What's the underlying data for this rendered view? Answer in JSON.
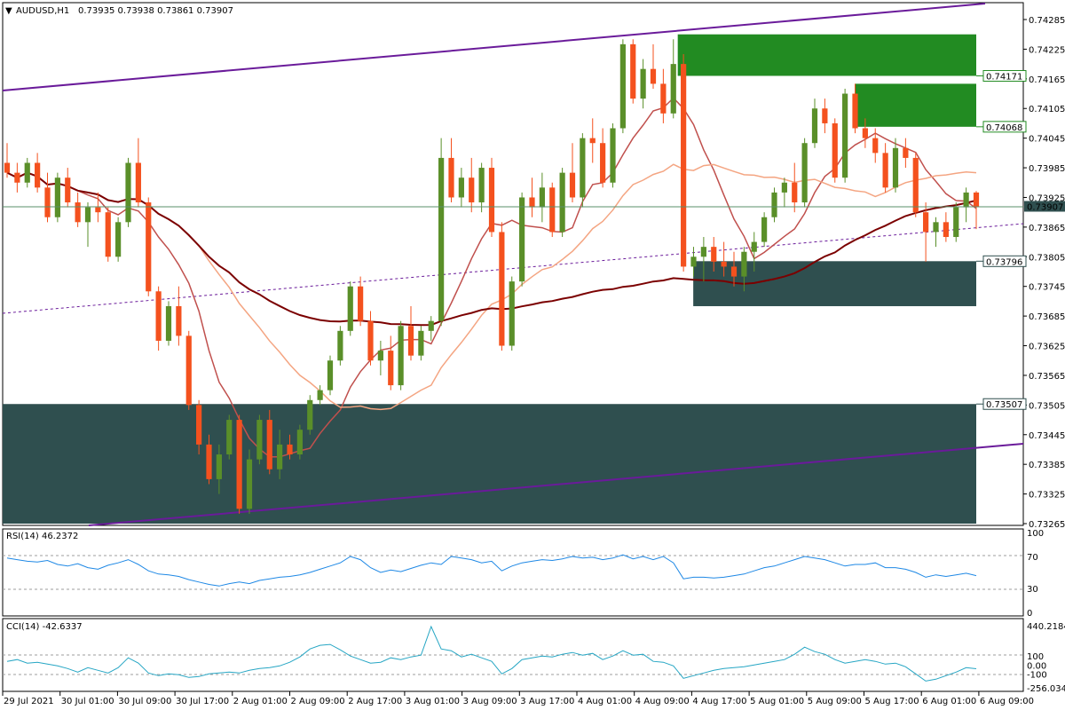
{
  "main": {
    "symbol": "AUDUSD,H1",
    "ohlc": "0.73935 0.73938 0.73861 0.73907",
    "price_ticks": [
      "0.74285",
      "0.74225",
      "0.74165",
      "0.74105",
      "0.74045",
      "0.73985",
      "0.73925",
      "0.73865",
      "0.73805",
      "0.73745",
      "0.73685",
      "0.73625",
      "0.73565",
      "0.73505",
      "0.73445",
      "0.73385",
      "0.73325",
      "0.73265"
    ],
    "current_price": "0.73907",
    "levels": [
      {
        "label": "0.74171",
        "price": 0.74171
      },
      {
        "label": "0.74068",
        "price": 0.74068
      },
      {
        "label": "0.73796",
        "price": 0.73796
      },
      {
        "label": "0.73507",
        "price": 0.73507
      }
    ]
  },
  "rsi": {
    "title": "RSI(14) 46.2372",
    "ticks": [
      "100",
      "70",
      "30",
      "0"
    ]
  },
  "cci": {
    "title": "CCI(14) -42.6337",
    "ticks": [
      "440.2184",
      "100",
      "0.00",
      "-100",
      "-256.0349"
    ]
  },
  "time_labels": [
    "29 Jul 2021",
    "30 Jul 01:00",
    "30 Jul 09:00",
    "30 Jul 17:00",
    "2 Aug 01:00",
    "2 Aug 09:00",
    "2 Aug 17:00",
    "3 Aug 01:00",
    "3 Aug 09:00",
    "3 Aug 17:00",
    "4 Aug 01:00",
    "4 Aug 09:00",
    "4 Aug 17:00",
    "5 Aug 01:00",
    "5 Aug 09:00",
    "5 Aug 17:00",
    "6 Aug 01:00",
    "6 Aug 09:00"
  ],
  "colors": {
    "bull": "#5a8f29",
    "bear": "#f4511e",
    "zone_green": "#228b22",
    "zone_dark": "#2f4f4f",
    "channel": "#6a1b9a",
    "ma_fast": "#f4a582",
    "ma_mid": "#c0504d",
    "ma_slow": "#7b0000",
    "osc": "#1e88e5"
  },
  "chart_data": {
    "type": "candlestick",
    "title": "AUDUSD,H1",
    "ylim": [
      0.73265,
      0.74285
    ],
    "candles": [
      [
        0.73995,
        0.74035,
        0.73965,
        0.73975
      ],
      [
        0.73975,
        0.73995,
        0.73935,
        0.73955
      ],
      [
        0.73955,
        0.74005,
        0.73945,
        0.73995
      ],
      [
        0.73995,
        0.74015,
        0.73935,
        0.73945
      ],
      [
        0.73945,
        0.73975,
        0.73875,
        0.73885
      ],
      [
        0.73885,
        0.73975,
        0.73875,
        0.73965
      ],
      [
        0.73965,
        0.73985,
        0.73905,
        0.73915
      ],
      [
        0.73915,
        0.73935,
        0.73865,
        0.73875
      ],
      [
        0.73875,
        0.73915,
        0.73825,
        0.73905
      ],
      [
        0.73905,
        0.73935,
        0.73875,
        0.73895
      ],
      [
        0.73895,
        0.73905,
        0.73795,
        0.73805
      ],
      [
        0.73805,
        0.73885,
        0.73795,
        0.73875
      ],
      [
        0.73875,
        0.74005,
        0.73865,
        0.73995
      ],
      [
        0.73995,
        0.74045,
        0.73905,
        0.73915
      ],
      [
        0.73915,
        0.73925,
        0.73725,
        0.73735
      ],
      [
        0.73735,
        0.73745,
        0.73615,
        0.73635
      ],
      [
        0.73635,
        0.73715,
        0.73625,
        0.73705
      ],
      [
        0.73705,
        0.73745,
        0.73625,
        0.73645
      ],
      [
        0.73645,
        0.73655,
        0.73495,
        0.73505
      ],
      [
        0.73505,
        0.73515,
        0.73405,
        0.73425
      ],
      [
        0.73425,
        0.73445,
        0.73345,
        0.73355
      ],
      [
        0.73355,
        0.73425,
        0.73325,
        0.73405
      ],
      [
        0.73405,
        0.73485,
        0.73395,
        0.73475
      ],
      [
        0.73475,
        0.73485,
        0.73285,
        0.73295
      ],
      [
        0.73295,
        0.73415,
        0.73285,
        0.73395
      ],
      [
        0.73395,
        0.73485,
        0.73385,
        0.73475
      ],
      [
        0.73475,
        0.73495,
        0.73365,
        0.73375
      ],
      [
        0.73375,
        0.73455,
        0.73355,
        0.73425
      ],
      [
        0.73425,
        0.73445,
        0.73395,
        0.73405
      ],
      [
        0.73405,
        0.73465,
        0.73395,
        0.73455
      ],
      [
        0.73455,
        0.73525,
        0.73445,
        0.73515
      ],
      [
        0.73515,
        0.73545,
        0.73505,
        0.73535
      ],
      [
        0.73535,
        0.73605,
        0.73525,
        0.73595
      ],
      [
        0.73595,
        0.73665,
        0.73585,
        0.73655
      ],
      [
        0.73655,
        0.73755,
        0.73645,
        0.73745
      ],
      [
        0.73745,
        0.73765,
        0.73665,
        0.73675
      ],
      [
        0.73675,
        0.73695,
        0.73585,
        0.73595
      ],
      [
        0.73595,
        0.73635,
        0.73565,
        0.73615
      ],
      [
        0.73615,
        0.73645,
        0.73535,
        0.73545
      ],
      [
        0.73545,
        0.73675,
        0.73535,
        0.73665
      ],
      [
        0.73665,
        0.73705,
        0.73595,
        0.73605
      ],
      [
        0.73605,
        0.73665,
        0.73595,
        0.73655
      ],
      [
        0.73655,
        0.73685,
        0.73635,
        0.73675
      ],
      [
        0.73675,
        0.74045,
        0.73665,
        0.74005
      ],
      [
        0.74005,
        0.74045,
        0.73915,
        0.73925
      ],
      [
        0.73925,
        0.73985,
        0.73905,
        0.73965
      ],
      [
        0.73965,
        0.74005,
        0.73895,
        0.73915
      ],
      [
        0.73915,
        0.73995,
        0.73895,
        0.73985
      ],
      [
        0.73985,
        0.74005,
        0.73845,
        0.73855
      ],
      [
        0.73855,
        0.73875,
        0.73615,
        0.73625
      ],
      [
        0.73625,
        0.73765,
        0.73615,
        0.73755
      ],
      [
        0.73755,
        0.73935,
        0.73745,
        0.73925
      ],
      [
        0.73925,
        0.73965,
        0.73885,
        0.73905
      ],
      [
        0.73905,
        0.73975,
        0.73875,
        0.73945
      ],
      [
        0.73945,
        0.73955,
        0.73845,
        0.73855
      ],
      [
        0.73855,
        0.73985,
        0.73845,
        0.73975
      ],
      [
        0.73975,
        0.74035,
        0.73915,
        0.73925
      ],
      [
        0.73925,
        0.74055,
        0.73905,
        0.74045
      ],
      [
        0.74045,
        0.74085,
        0.73995,
        0.74035
      ],
      [
        0.74035,
        0.74065,
        0.73945,
        0.73955
      ],
      [
        0.73955,
        0.74075,
        0.73945,
        0.74065
      ],
      [
        0.74065,
        0.74245,
        0.74055,
        0.74235
      ],
      [
        0.74235,
        0.74245,
        0.74115,
        0.74125
      ],
      [
        0.74125,
        0.74205,
        0.74105,
        0.74185
      ],
      [
        0.74185,
        0.74235,
        0.74145,
        0.74155
      ],
      [
        0.74155,
        0.74185,
        0.74075,
        0.74095
      ],
      [
        0.74095,
        0.74245,
        0.74085,
        0.74195
      ],
      [
        0.74195,
        0.74215,
        0.73775,
        0.73785
      ],
      [
        0.73785,
        0.73825,
        0.73765,
        0.73805
      ],
      [
        0.73805,
        0.73845,
        0.73755,
        0.73825
      ],
      [
        0.73825,
        0.73845,
        0.73775,
        0.73795
      ],
      [
        0.73795,
        0.73835,
        0.73765,
        0.73785
      ],
      [
        0.73785,
        0.73815,
        0.73745,
        0.73765
      ],
      [
        0.73765,
        0.73825,
        0.73735,
        0.73815
      ],
      [
        0.73815,
        0.73855,
        0.73775,
        0.73835
      ],
      [
        0.73835,
        0.73895,
        0.73825,
        0.73885
      ],
      [
        0.73885,
        0.73945,
        0.73875,
        0.73935
      ],
      [
        0.73935,
        0.73965,
        0.73905,
        0.73955
      ],
      [
        0.73955,
        0.73995,
        0.73895,
        0.73915
      ],
      [
        0.73915,
        0.74045,
        0.73905,
        0.74035
      ],
      [
        0.74035,
        0.74125,
        0.74025,
        0.74105
      ],
      [
        0.74105,
        0.74125,
        0.74055,
        0.74075
      ],
      [
        0.74075,
        0.74085,
        0.73955,
        0.73965
      ],
      [
        0.73965,
        0.74145,
        0.73955,
        0.74135
      ],
      [
        0.74135,
        0.74155,
        0.74055,
        0.74065
      ],
      [
        0.74065,
        0.74085,
        0.74025,
        0.74045
      ],
      [
        0.74045,
        0.74065,
        0.73995,
        0.74015
      ],
      [
        0.74015,
        0.74035,
        0.73935,
        0.73945
      ],
      [
        0.73945,
        0.74045,
        0.73935,
        0.74025
      ],
      [
        0.74025,
        0.74045,
        0.73985,
        0.74005
      ],
      [
        0.74005,
        0.74015,
        0.73885,
        0.73895
      ],
      [
        0.73895,
        0.73915,
        0.73795,
        0.73855
      ],
      [
        0.73855,
        0.73885,
        0.73825,
        0.73875
      ],
      [
        0.73875,
        0.73895,
        0.73835,
        0.73845
      ],
      [
        0.73845,
        0.73915,
        0.73835,
        0.73905
      ],
      [
        0.73905,
        0.73945,
        0.73875,
        0.73935
      ],
      [
        0.73935,
        0.73938,
        0.73861,
        0.73907
      ]
    ],
    "zones": [
      {
        "from": 0.74171,
        "to": 0.74255,
        "color": "green"
      },
      {
        "from": 0.74068,
        "to": 0.74155,
        "color": "green"
      },
      {
        "from": 0.73705,
        "to": 0.73796,
        "color": "dark"
      },
      {
        "from": 0.73265,
        "to": 0.73507,
        "color": "dark"
      }
    ],
    "rsi": [
      68,
      66,
      64,
      63,
      65,
      60,
      58,
      61,
      56,
      54,
      59,
      62,
      66,
      60,
      52,
      48,
      47,
      45,
      41,
      38,
      35,
      33,
      36,
      38,
      36,
      40,
      42,
      44,
      45,
      47,
      50,
      54,
      58,
      62,
      70,
      66,
      56,
      50,
      53,
      51,
      55,
      59,
      62,
      60,
      70,
      68,
      66,
      62,
      64,
      52,
      58,
      62,
      64,
      66,
      65,
      67,
      70,
      68,
      69,
      66,
      68,
      72,
      67,
      70,
      66,
      70,
      62,
      42,
      44,
      44,
      43,
      44,
      46,
      48,
      52,
      56,
      58,
      62,
      66,
      70,
      68,
      66,
      62,
      58,
      60,
      60,
      62,
      56,
      56,
      54,
      50,
      44,
      47,
      45,
      47,
      49,
      46
    ],
    "cci": [
      40,
      60,
      20,
      30,
      10,
      -10,
      -40,
      -80,
      -30,
      -60,
      -90,
      -30,
      80,
      20,
      -90,
      -120,
      -100,
      -110,
      -140,
      -130,
      -100,
      -90,
      -80,
      -90,
      -60,
      -40,
      -30,
      -10,
      30,
      90,
      180,
      220,
      230,
      170,
      100,
      60,
      20,
      30,
      80,
      60,
      90,
      110,
      430,
      180,
      160,
      90,
      120,
      80,
      40,
      -100,
      -40,
      60,
      80,
      100,
      90,
      120,
      140,
      110,
      130,
      60,
      100,
      160,
      110,
      120,
      40,
      30,
      -10,
      -150,
      -120,
      -90,
      -60,
      -40,
      -30,
      -20,
      0,
      20,
      40,
      60,
      120,
      200,
      150,
      120,
      60,
      20,
      40,
      60,
      40,
      10,
      20,
      -20,
      -100,
      -180,
      -160,
      -120,
      -80,
      -30,
      -42
    ]
  }
}
